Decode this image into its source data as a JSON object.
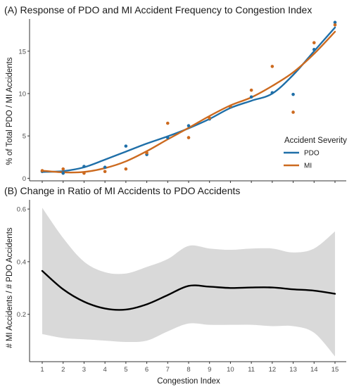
{
  "chart_data": [
    {
      "type": "scatter",
      "title": "(A) Response of PDO and MI Accident Frequency to Congestion Index",
      "xlabel": "",
      "ylabel": "% of Total PDO / MI Accidents",
      "xlim": [
        1,
        15
      ],
      "ylim": [
        -0.3,
        18.8
      ],
      "xticks": [
        1,
        2,
        3,
        4,
        5,
        6,
        7,
        8,
        9,
        10,
        11,
        12,
        13,
        14,
        15
      ],
      "yticks": [
        0,
        5,
        10,
        15
      ],
      "grid": false,
      "legend": {
        "title": "Accident Severity",
        "position": "right",
        "entries": [
          "PDO",
          "MI"
        ]
      },
      "series": [
        {
          "name": "PDO",
          "color": "#1f6fa8",
          "x": [
            1,
            2,
            3,
            4,
            5,
            6,
            7,
            8,
            9,
            10,
            11,
            12,
            13,
            14,
            15
          ],
          "points": [
            0.8,
            0.6,
            1.4,
            1.3,
            3.8,
            2.8,
            4.8,
            6.2,
            7.0,
            8.4,
            9.6,
            10.1,
            9.9,
            15.2,
            18.4
          ],
          "smooth": [
            0.75,
            0.85,
            1.3,
            2.2,
            3.15,
            4.1,
            4.95,
            5.9,
            7.0,
            8.3,
            9.15,
            10.0,
            12.2,
            15.0,
            17.8
          ]
        },
        {
          "name": "MI",
          "color": "#cc6a1f",
          "x": [
            1,
            2,
            3,
            4,
            5,
            6,
            7,
            8,
            9,
            10,
            11,
            12,
            13,
            14,
            15
          ],
          "points": [
            0.9,
            1.1,
            0.6,
            0.8,
            1.1,
            3.0,
            6.5,
            4.8,
            7.1,
            8.5,
            10.4,
            13.2,
            7.8,
            16.0,
            18.1
          ],
          "smooth": [
            0.9,
            0.7,
            0.75,
            1.2,
            2.0,
            3.2,
            4.6,
            5.95,
            7.35,
            8.6,
            9.55,
            10.9,
            12.5,
            14.7,
            17.3
          ]
        }
      ]
    },
    {
      "type": "line",
      "title": "(B) Change in Ratio of MI Accidents to PDO Accidents",
      "xlabel": "Congestion Index",
      "ylabel": "# MI Accidents / # PDO Accidents",
      "xlim": [
        1,
        15
      ],
      "ylim": [
        0.02,
        0.635
      ],
      "xticks": [
        1,
        2,
        3,
        4,
        5,
        6,
        7,
        8,
        9,
        10,
        11,
        12,
        13,
        14,
        15
      ],
      "yticks": [
        0.2,
        0.4,
        0.6
      ],
      "grid": false,
      "x": [
        1,
        2,
        3,
        4,
        5,
        6,
        7,
        8,
        9,
        10,
        11,
        12,
        13,
        14,
        15
      ],
      "series": [
        {
          "name": "",
          "color": "#000000",
          "values": [
            0.365,
            0.295,
            0.248,
            0.222,
            0.218,
            0.238,
            0.273,
            0.308,
            0.305,
            0.3,
            0.302,
            0.302,
            0.295,
            0.29,
            0.278
          ]
        }
      ],
      "confidence_band": {
        "color": "#d9d9d9",
        "upper": [
          0.605,
          0.49,
          0.4,
          0.36,
          0.355,
          0.38,
          0.41,
          0.46,
          0.45,
          0.445,
          0.45,
          0.45,
          0.435,
          0.45,
          0.515
        ],
        "lower": [
          0.125,
          0.11,
          0.105,
          0.1,
          0.095,
          0.1,
          0.135,
          0.165,
          0.16,
          0.16,
          0.16,
          0.155,
          0.155,
          0.13,
          0.04
        ]
      }
    }
  ]
}
